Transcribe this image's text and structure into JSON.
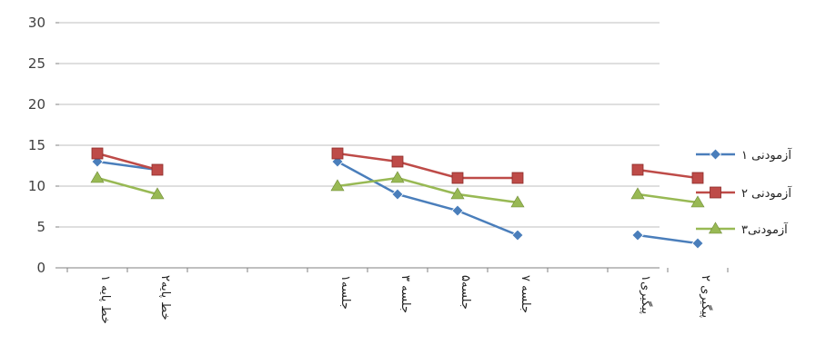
{
  "chart_data": {
    "type": "line",
    "categories": [
      "خط پایه ۱",
      "خط پایه۲",
      "",
      "",
      "جلسه۱",
      "جلسه ۳",
      "جلسه۵",
      "جلسه ۷",
      "",
      "پیگیری۱",
      "پیگیری ۲"
    ],
    "series": [
      {
        "name": "آزمودنی ۱",
        "color": "#4a7ebb",
        "marker": "diamond",
        "values": [
          13,
          12,
          null,
          null,
          13,
          9,
          7,
          4,
          null,
          4,
          3
        ]
      },
      {
        "name": "آزمودنی ۲",
        "color": "#be4b48",
        "marker": "square",
        "values": [
          14,
          12,
          null,
          null,
          14,
          13,
          11,
          11,
          null,
          12,
          11
        ]
      },
      {
        "name": "آزمودنی۳",
        "color": "#98b954",
        "marker": "triangle",
        "values": [
          11,
          9,
          null,
          null,
          10,
          11,
          9,
          8,
          null,
          9,
          8
        ]
      }
    ],
    "ylim": [
      0,
      30
    ],
    "yticks": [
      0,
      5,
      10,
      15,
      20,
      25,
      30
    ],
    "grid": true,
    "legend_position": "right",
    "title": "",
    "xlabel": "",
    "ylabel": ""
  }
}
